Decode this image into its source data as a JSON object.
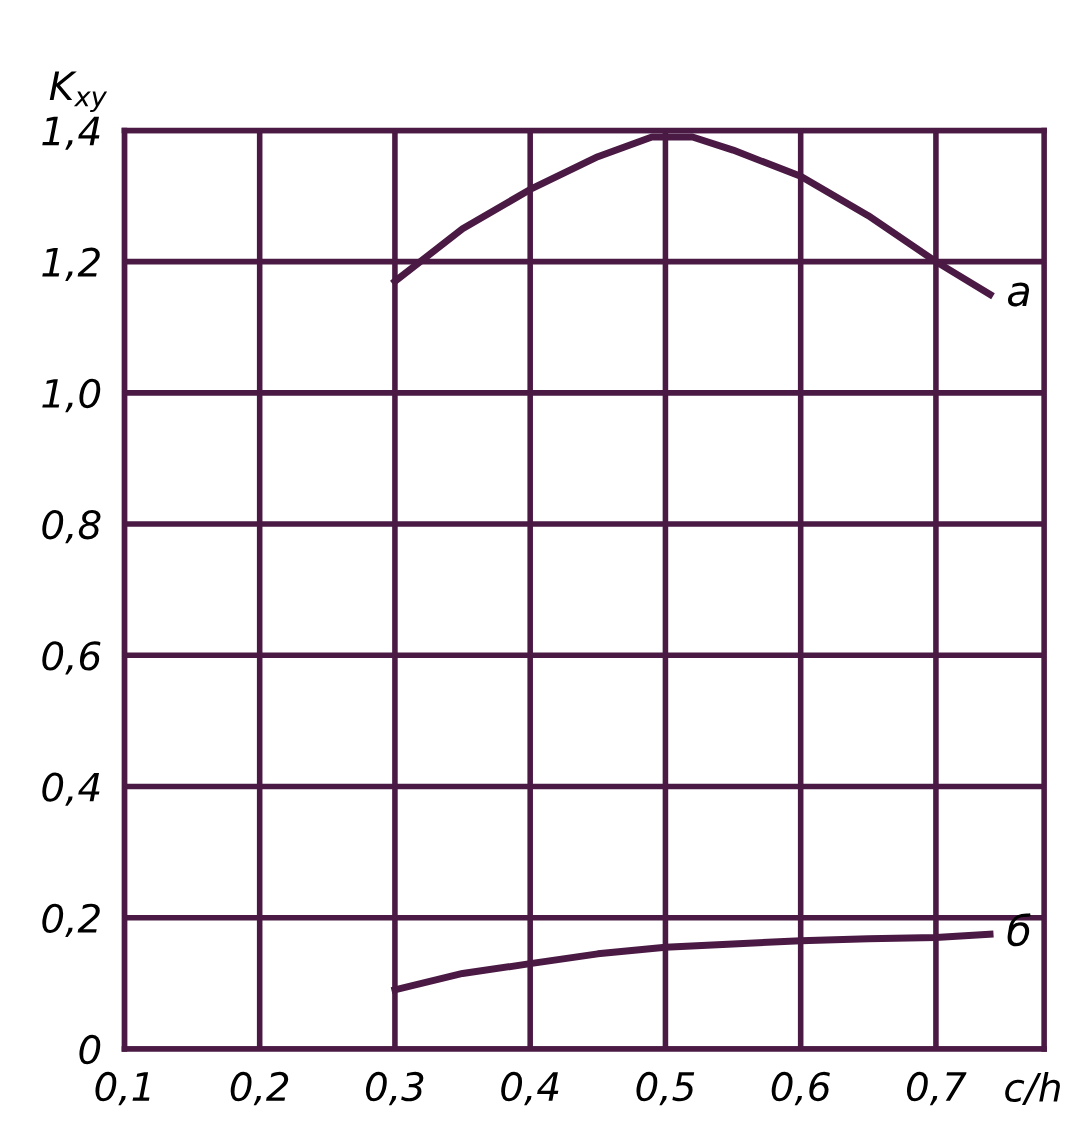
{
  "chart_data": {
    "type": "line",
    "ylabel": "K$_{xy}$",
    "xlabel": "c/h",
    "xlim": [
      0.1,
      0.78
    ],
    "ylim": [
      0,
      1.4
    ],
    "xticks": [
      {
        "value": 0.1,
        "label": "0,1"
      },
      {
        "value": 0.2,
        "label": "0,2"
      },
      {
        "value": 0.3,
        "label": "0,3"
      },
      {
        "value": 0.4,
        "label": "0,4"
      },
      {
        "value": 0.5,
        "label": "0,5"
      },
      {
        "value": 0.6,
        "label": "0,6"
      },
      {
        "value": 0.7,
        "label": "0,7"
      }
    ],
    "yticks": [
      {
        "value": 0,
        "label": "0"
      },
      {
        "value": 0.2,
        "label": "0,2"
      },
      {
        "value": 0.4,
        "label": "0,4"
      },
      {
        "value": 0.6,
        "label": "0,6"
      },
      {
        "value": 0.8,
        "label": "0,8"
      },
      {
        "value": 1.0,
        "label": "1,0"
      },
      {
        "value": 1.2,
        "label": "1,2"
      },
      {
        "value": 1.4,
        "label": "1,4"
      }
    ],
    "grid": true,
    "marker": "none",
    "line_style": "solid",
    "series": [
      {
        "name": "а",
        "color": "#4a1a44",
        "x": [
          0.3,
          0.35,
          0.4,
          0.45,
          0.49,
          0.52,
          0.55,
          0.6,
          0.65,
          0.7,
          0.74
        ],
        "values": [
          1.17,
          1.25,
          1.31,
          1.36,
          1.39,
          1.39,
          1.37,
          1.33,
          1.27,
          1.2,
          1.15
        ]
      },
      {
        "name": "б",
        "color": "#4a1a44",
        "x": [
          0.3,
          0.35,
          0.4,
          0.45,
          0.5,
          0.55,
          0.6,
          0.65,
          0.7,
          0.74
        ],
        "values": [
          0.09,
          0.115,
          0.13,
          0.145,
          0.155,
          0.16,
          0.165,
          0.168,
          0.17,
          0.175
        ]
      }
    ]
  }
}
